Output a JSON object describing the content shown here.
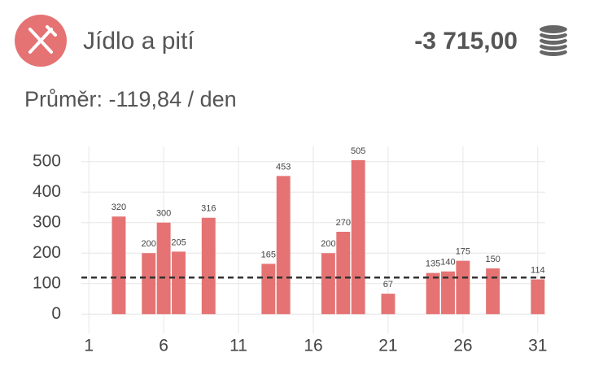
{
  "header": {
    "title": "Jídlo a pití",
    "total": "-3 715,00",
    "average": "Průměr: -119,84 / den"
  },
  "chart_data": {
    "type": "bar",
    "x": [
      3,
      5,
      6,
      7,
      9,
      13,
      14,
      17,
      18,
      19,
      21,
      24,
      25,
      26,
      28,
      31
    ],
    "values": [
      320,
      200,
      300,
      205,
      316,
      165,
      453,
      200,
      270,
      505,
      67,
      135,
      140,
      175,
      150,
      114
    ],
    "color": "#e57373",
    "average_line": 119.84,
    "xlim": [
      0.5,
      31.5
    ],
    "xticks": [
      1,
      6,
      11,
      16,
      21,
      26,
      31
    ],
    "ylim": [
      -50,
      550
    ],
    "yticks": [
      0,
      100,
      200,
      300,
      400,
      500
    ],
    "grid": true
  }
}
